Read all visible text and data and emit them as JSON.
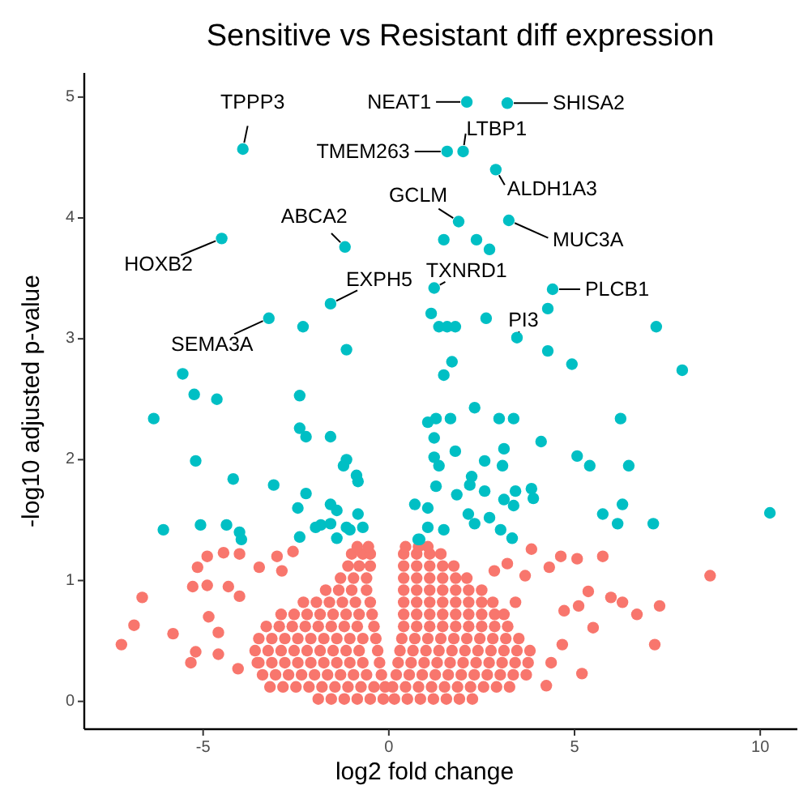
{
  "chart_data": {
    "type": "scatter",
    "title": "Sensitive vs Resistant  diff expression",
    "xlabel": "log2 fold change",
    "ylabel": "-log10 adjusted p-value",
    "xlim": [
      -8.2,
      11
    ],
    "ylim": [
      -0.23,
      5.2
    ],
    "xticks": [
      -5,
      0,
      5,
      10
    ],
    "yticks": [
      0,
      1,
      2,
      3,
      4,
      5
    ],
    "grid": false,
    "marker": "circle",
    "series": [
      {
        "color": "#f8766d",
        "x": [
          -1.9,
          -1.55,
          -1.2,
          -0.85,
          -0.5,
          -0.15,
          0.15,
          0.5,
          0.85,
          1.2,
          1.55,
          1.9,
          2.25,
          -3.2,
          -2.85,
          -2.5,
          -2.15,
          -1.8,
          -1.45,
          -1.1,
          -0.75,
          -0.4,
          -0.1,
          0.1,
          0.45,
          0.8,
          1.15,
          1.5,
          1.85,
          2.2,
          2.55,
          2.9,
          3.25,
          -3.4,
          -3.05,
          -2.7,
          -2.35,
          -2.0,
          -1.65,
          -1.3,
          -0.95,
          -0.6,
          -0.2,
          0.2,
          0.55,
          0.9,
          1.25,
          1.6,
          1.95,
          2.3,
          2.65,
          3.0,
          3.35,
          3.7,
          -3.5,
          -3.15,
          -2.8,
          -2.45,
          -2.1,
          -1.75,
          -1.4,
          -1.05,
          -0.7,
          -0.25,
          0.25,
          0.6,
          0.95,
          1.3,
          1.65,
          2.0,
          2.35,
          2.7,
          3.05,
          3.4,
          3.75,
          -3.6,
          -3.25,
          -2.9,
          -2.55,
          -2.2,
          -1.85,
          -1.5,
          -1.15,
          -0.8,
          -0.3,
          0.3,
          0.65,
          1.0,
          1.35,
          1.7,
          2.05,
          2.4,
          2.75,
          3.1,
          3.45,
          3.8,
          -3.5,
          -3.15,
          -2.8,
          -2.45,
          -2.1,
          -1.75,
          -1.4,
          -1.05,
          -0.7,
          -0.35,
          0.35,
          0.7,
          1.05,
          1.4,
          1.75,
          2.1,
          2.45,
          2.8,
          3.15,
          3.5,
          -3.3,
          -2.95,
          -2.6,
          -2.25,
          -1.9,
          -1.55,
          -1.2,
          -0.85,
          -0.4,
          0.4,
          0.75,
          1.1,
          1.45,
          1.8,
          2.15,
          2.5,
          2.85,
          3.2,
          -2.9,
          -2.55,
          -2.2,
          -1.85,
          -1.5,
          -1.15,
          -0.8,
          -0.45,
          0.4,
          0.75,
          1.1,
          1.45,
          1.8,
          2.15,
          2.5,
          2.85,
          3.1,
          -2.3,
          -1.95,
          -1.6,
          -1.25,
          -0.9,
          -0.5,
          0.4,
          0.75,
          1.1,
          1.45,
          1.8,
          2.15,
          2.5,
          2.8,
          -1.7,
          -1.35,
          -1.0,
          -0.6,
          0.4,
          0.75,
          1.1,
          1.45,
          1.8,
          2.15,
          2.5,
          -1.3,
          -0.95,
          -0.6,
          0.4,
          0.75,
          1.1,
          1.45,
          1.8,
          2.1,
          -1.1,
          -0.8,
          -0.5,
          0.4,
          0.75,
          1.1,
          1.45,
          1.75,
          -1.0,
          -0.7,
          -0.5,
          0.4,
          0.75,
          1.1,
          1.4,
          -0.85,
          -0.55,
          0.45,
          0.8,
          1.05,
          8.65,
          7.29,
          7.16,
          6.68,
          6.29,
          5.98,
          5.76,
          5.5,
          5.37,
          5.07,
          5.11,
          5.2,
          4.63,
          4.32,
          4.37,
          4.24,
          4.72,
          4.67,
          3.84,
          3.67,
          3.41,
          2.84,
          3.19,
          -7.2,
          -6.86,
          -6.64,
          -5.81,
          -5.28,
          -4.89,
          -5.15,
          -4.89,
          -4.45,
          -4.02,
          -4.85,
          -5.2,
          -5.33,
          -4.59,
          -4.59,
          -4.32,
          -4.02,
          -4.06,
          -3.49,
          -3.54,
          -3.01,
          -2.88,
          -2.58
        ],
        "values": [
          0.02,
          0.02,
          0.02,
          0.02,
          0.02,
          0.02,
          0.02,
          0.02,
          0.02,
          0.02,
          0.02,
          0.02,
          0.02,
          0.12,
          0.12,
          0.12,
          0.12,
          0.12,
          0.12,
          0.12,
          0.12,
          0.12,
          0.12,
          0.12,
          0.12,
          0.12,
          0.12,
          0.12,
          0.12,
          0.12,
          0.12,
          0.12,
          0.12,
          0.22,
          0.22,
          0.22,
          0.22,
          0.22,
          0.22,
          0.22,
          0.22,
          0.22,
          0.22,
          0.22,
          0.22,
          0.22,
          0.22,
          0.22,
          0.22,
          0.22,
          0.22,
          0.22,
          0.22,
          0.22,
          0.32,
          0.32,
          0.32,
          0.32,
          0.32,
          0.32,
          0.32,
          0.32,
          0.32,
          0.32,
          0.32,
          0.32,
          0.32,
          0.32,
          0.32,
          0.32,
          0.32,
          0.32,
          0.32,
          0.32,
          0.32,
          0.42,
          0.42,
          0.42,
          0.42,
          0.42,
          0.42,
          0.42,
          0.42,
          0.42,
          0.42,
          0.42,
          0.42,
          0.42,
          0.42,
          0.42,
          0.42,
          0.42,
          0.42,
          0.42,
          0.42,
          0.42,
          0.52,
          0.52,
          0.52,
          0.52,
          0.52,
          0.52,
          0.52,
          0.52,
          0.52,
          0.52,
          0.52,
          0.52,
          0.52,
          0.52,
          0.52,
          0.52,
          0.52,
          0.52,
          0.52,
          0.52,
          0.62,
          0.62,
          0.62,
          0.62,
          0.62,
          0.62,
          0.62,
          0.62,
          0.62,
          0.62,
          0.62,
          0.62,
          0.62,
          0.62,
          0.62,
          0.62,
          0.62,
          0.62,
          0.72,
          0.72,
          0.72,
          0.72,
          0.72,
          0.72,
          0.72,
          0.72,
          0.72,
          0.72,
          0.72,
          0.72,
          0.72,
          0.72,
          0.72,
          0.72,
          0.72,
          0.82,
          0.82,
          0.82,
          0.82,
          0.82,
          0.82,
          0.82,
          0.82,
          0.82,
          0.82,
          0.82,
          0.82,
          0.82,
          0.82,
          0.92,
          0.92,
          0.92,
          0.92,
          0.92,
          0.92,
          0.92,
          0.92,
          0.92,
          0.92,
          0.92,
          1.02,
          1.02,
          1.02,
          1.02,
          1.02,
          1.02,
          1.02,
          1.02,
          1.02,
          1.12,
          1.12,
          1.12,
          1.12,
          1.12,
          1.12,
          1.12,
          1.12,
          1.22,
          1.22,
          1.22,
          1.22,
          1.22,
          1.22,
          1.22,
          1.28,
          1.28,
          1.28,
          1.28,
          1.28,
          1.04,
          0.79,
          0.47,
          0.72,
          0.82,
          0.86,
          1.2,
          0.61,
          0.91,
          1.18,
          0.79,
          0.23,
          1.2,
          1.11,
          0.32,
          0.13,
          0.75,
          0.47,
          1.26,
          1.04,
          0.82,
          1.08,
          1.14,
          0.47,
          0.63,
          0.86,
          0.56,
          0.95,
          0.96,
          1.11,
          1.2,
          1.23,
          1.22,
          0.7,
          0.41,
          0.32,
          0.57,
          0.39,
          0.95,
          0.87,
          0.27,
          1.11,
          0.32,
          1.2,
          1.08,
          1.24
        ]
      },
      {
        "color": "#00bfc4",
        "x": [
          -3.93,
          2.1,
          3.19,
          1.57,
          2.0,
          2.88,
          1.88,
          3.23,
          -1.18,
          -4.5,
          -1.57,
          -3.23,
          1.22,
          4.41,
          3.45,
          -2.31,
          -1.14,
          -5.55,
          -5.24,
          -4.63,
          -2.4,
          -6.33,
          -2.4,
          -2.23,
          -1.57,
          -1.14,
          -1.22,
          -5.2,
          -4.19,
          -3.1,
          -0.87,
          -0.83,
          -2.23,
          -2.45,
          -1.57,
          -1.4,
          -0.83,
          -6.07,
          -5.07,
          -4.37,
          -4.02,
          -1.83,
          -1.57,
          -1.14,
          -0.7,
          -2.4,
          -1.4,
          -3.97,
          -1.97,
          -1.05,
          0.79,
          1.48,
          2.36,
          2.71,
          1.14,
          1.35,
          1.57,
          1.79,
          2.62,
          4.28,
          4.28,
          4.93,
          7.2,
          7.9,
          1.7,
          1.48,
          2.31,
          1.05,
          1.27,
          1.66,
          2.97,
          3.36,
          6.24,
          1.22,
          1.79,
          3.1,
          4.1,
          5.07,
          5.41,
          6.46,
          1.22,
          1.35,
          2.58,
          3.06,
          1.27,
          2.23,
          2.18,
          1.83,
          2.58,
          3.41,
          3.84,
          3.89,
          3.1,
          3.36,
          0.7,
          1.05,
          2.14,
          2.71,
          3.01,
          3.32,
          1.48,
          2.31,
          1.05,
          0.83,
          5.76,
          6.29,
          6.16,
          7.12,
          10.26
        ],
        "values": [
          4.57,
          4.96,
          4.95,
          4.55,
          4.55,
          4.4,
          3.97,
          3.98,
          3.76,
          3.83,
          3.29,
          3.17,
          3.42,
          3.41,
          3.01,
          3.1,
          2.91,
          2.71,
          2.54,
          2.5,
          2.53,
          2.34,
          2.26,
          2.19,
          2.19,
          2.0,
          1.95,
          1.99,
          1.84,
          1.79,
          1.87,
          1.82,
          1.72,
          1.6,
          1.63,
          1.58,
          1.55,
          1.42,
          1.46,
          1.46,
          1.4,
          1.46,
          1.47,
          1.44,
          1.44,
          1.36,
          1.35,
          1.34,
          1.44,
          1.42,
          1.34,
          3.82,
          3.82,
          3.74,
          3.21,
          3.1,
          3.1,
          3.1,
          3.17,
          3.25,
          2.9,
          2.79,
          3.1,
          2.74,
          2.81,
          2.7,
          2.43,
          2.31,
          2.34,
          2.34,
          2.34,
          2.34,
          2.34,
          2.18,
          2.07,
          2.09,
          2.15,
          2.03,
          1.95,
          1.95,
          2.02,
          1.95,
          1.99,
          1.95,
          1.78,
          1.86,
          1.79,
          1.71,
          1.74,
          1.74,
          1.76,
          1.68,
          1.67,
          1.62,
          1.63,
          1.6,
          1.55,
          1.52,
          1.42,
          1.35,
          1.42,
          1.47,
          1.44,
          1.34,
          1.55,
          1.63,
          1.47,
          1.47,
          1.56
        ]
      }
    ],
    "annotations": [
      {
        "text": "TPPP3",
        "x": -3.93,
        "y": 4.57
      },
      {
        "text": "NEAT1",
        "x": 2.1,
        "y": 4.96
      },
      {
        "text": "SHISA2",
        "x": 3.19,
        "y": 4.95
      },
      {
        "text": "TMEM263",
        "x": 1.57,
        "y": 4.55
      },
      {
        "text": "LTBP1",
        "x": 2.0,
        "y": 4.55
      },
      {
        "text": "ALDH1A3",
        "x": 2.88,
        "y": 4.4
      },
      {
        "text": "GCLM",
        "x": 1.88,
        "y": 3.97
      },
      {
        "text": "MUC3A",
        "x": 3.23,
        "y": 3.98
      },
      {
        "text": "ABCA2",
        "x": -1.18,
        "y": 3.76
      },
      {
        "text": "HOXB2",
        "x": -4.5,
        "y": 3.83
      },
      {
        "text": "EXPH5",
        "x": -1.57,
        "y": 3.29
      },
      {
        "text": "TXNRD1",
        "x": 1.22,
        "y": 3.42
      },
      {
        "text": "PLCB1",
        "x": 4.41,
        "y": 3.41
      },
      {
        "text": "PI3",
        "x": 3.45,
        "y": 3.01
      },
      {
        "text": "SEMA3A",
        "x": -3.23,
        "y": 3.17
      }
    ]
  }
}
